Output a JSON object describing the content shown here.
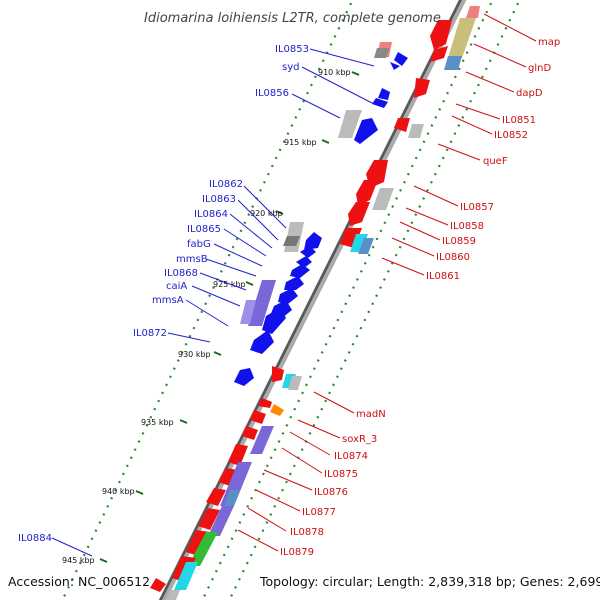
{
  "title": "Idiomarina loihiensis L2TR, complete genome",
  "accession": "Accession: NC_006512",
  "summary": "Topology: circular; Length: 2,839,318 bp; Genes: 2,699",
  "ticks": [
    {
      "label": "910 kbp"
    },
    {
      "label": "915 kbp"
    },
    {
      "label": "920 kbp"
    },
    {
      "label": "925 kbp"
    },
    {
      "label": "930 kbp"
    },
    {
      "label": "935 kbp"
    },
    {
      "label": "940 kbp"
    },
    {
      "label": "945 kbp"
    }
  ],
  "genes_left": [
    {
      "label": "IL0853"
    },
    {
      "label": "syd"
    },
    {
      "label": "IL0856"
    },
    {
      "label": "IL0862"
    },
    {
      "label": "IL0863"
    },
    {
      "label": "IL0864"
    },
    {
      "label": "IL0865"
    },
    {
      "label": "fabG"
    },
    {
      "label": "mmsB"
    },
    {
      "label": "IL0868"
    },
    {
      "label": "caiA"
    },
    {
      "label": "mmsA"
    },
    {
      "label": "IL0872"
    },
    {
      "label": "IL0884"
    }
  ],
  "genes_right": [
    {
      "label": "map"
    },
    {
      "label": "glnD"
    },
    {
      "label": "dapD"
    },
    {
      "label": "IL0851"
    },
    {
      "label": "IL0852"
    },
    {
      "label": "queF"
    },
    {
      "label": "IL0857"
    },
    {
      "label": "IL0858"
    },
    {
      "label": "IL0859"
    },
    {
      "label": "IL0860"
    },
    {
      "label": "IL0861"
    },
    {
      "label": "madN"
    },
    {
      "label": "soxR_3"
    },
    {
      "label": "IL0874"
    },
    {
      "label": "IL0875"
    },
    {
      "label": "IL0876"
    },
    {
      "label": "IL0877"
    },
    {
      "label": "IL0878"
    },
    {
      "label": "IL0879"
    }
  ],
  "colors": {
    "forward_cds": "#ee1111",
    "reverse_cds": "#1111ee",
    "left_label": "#2222cc",
    "right_label": "#cc1111",
    "backbone": "#777777",
    "orf_dots": "#2a8a2a",
    "gray_feature": "#bbbbbb",
    "purple_feature": "#7b68d8",
    "cyan_feature": "#22d8e8",
    "green_feature": "#33bb33",
    "olive_feature": "#c8c07a",
    "steelblue_feature": "#5b8fc7",
    "pink_feature": "#f08080",
    "orange_feature": "#ff8800"
  }
}
